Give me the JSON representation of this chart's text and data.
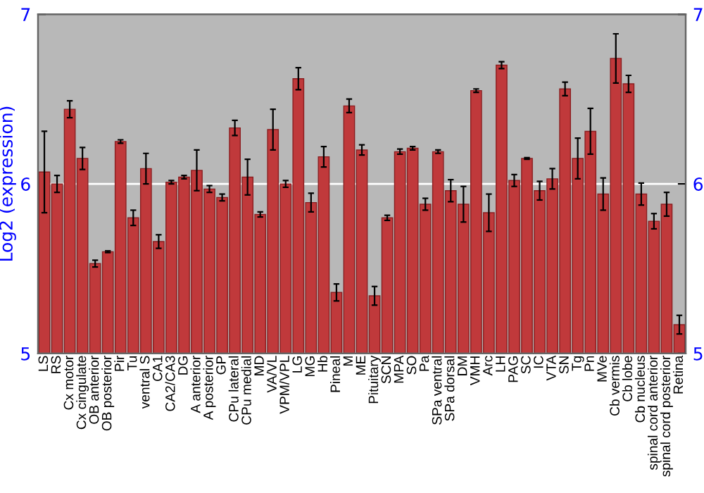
{
  "chart_data": {
    "type": "bar",
    "ylabel": "Log2 (expression)",
    "categories": [
      "LS",
      "RS",
      "Cx motor",
      "Cx cingulate",
      "OB anterior",
      "OB posterior",
      "Pir",
      "Tu",
      "ventral S",
      "CA1",
      "CA2/CA3",
      "DG",
      "A anterior",
      "A posterior",
      "GP",
      "CPu lateral",
      "CPu medial",
      "MD",
      "VA/VL",
      "VPM/VPL",
      "LG",
      "MG",
      "Hb",
      "Pineal",
      "M",
      "ME",
      "Pituitary",
      "SCN",
      "MPA",
      "SO",
      "Pa",
      "SPa ventral",
      "SPa dorsal",
      "DM",
      "VMH",
      "Arc",
      "LH",
      "PAG",
      "SC",
      "IC",
      "VTA",
      "SN",
      "Tg",
      "Pn",
      "MVe",
      "Cb vermis",
      "Cb lobe",
      "Cb nucleus",
      "spinal cord anterior",
      "spinal cord posterior",
      "Retina"
    ],
    "values": [
      6.07,
      6.0,
      6.44,
      6.15,
      5.53,
      5.6,
      6.25,
      5.8,
      6.09,
      5.66,
      6.01,
      6.04,
      6.08,
      5.97,
      5.92,
      6.33,
      6.04,
      5.82,
      6.32,
      6.0,
      6.62,
      5.89,
      6.16,
      5.36,
      6.46,
      6.2,
      5.34,
      5.8,
      6.19,
      6.21,
      5.88,
      6.19,
      5.96,
      5.88,
      6.55,
      5.83,
      6.7,
      6.02,
      6.15,
      5.96,
      6.03,
      6.56,
      6.15,
      6.31,
      5.94,
      6.74,
      6.59,
      5.94,
      5.78,
      5.88,
      5.17
    ],
    "errors": [
      0.24,
      0.05,
      0.05,
      0.065,
      0.02,
      0.005,
      0.01,
      0.045,
      0.09,
      0.04,
      0.01,
      0.01,
      0.12,
      0.02,
      0.02,
      0.045,
      0.105,
      0.015,
      0.12,
      0.02,
      0.065,
      0.055,
      0.06,
      0.05,
      0.04,
      0.03,
      0.055,
      0.015,
      0.015,
      0.01,
      0.035,
      0.01,
      0.065,
      0.105,
      0.01,
      0.11,
      0.02,
      0.035,
      0.005,
      0.055,
      0.06,
      0.04,
      0.12,
      0.135,
      0.095,
      0.145,
      0.05,
      0.065,
      0.045,
      0.07,
      0.055
    ],
    "color": "#c0393b",
    "ylim": [
      5,
      7
    ],
    "yticks": [
      5,
      6,
      7
    ],
    "y2lim": [
      5,
      7
    ],
    "y2ticks": [
      5,
      6,
      7
    ],
    "grid": "y",
    "legend": false
  }
}
